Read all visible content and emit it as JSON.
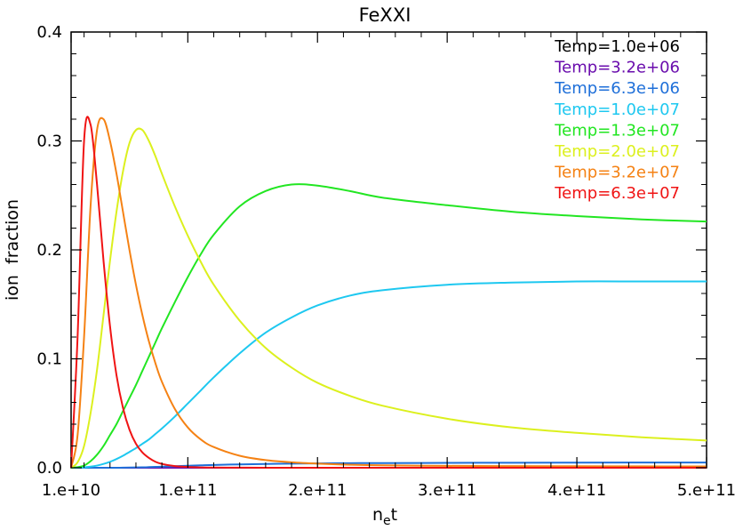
{
  "chart_data": {
    "type": "line",
    "title": "FeXXI",
    "xlabel": "n",
    "xlabel_subscript": "e",
    "xlabel_suffix": "t",
    "ylabel": "ion  fraction",
    "xlim": [
      10000000000.0,
      500000000000.0
    ],
    "ylim": [
      0,
      0.4
    ],
    "x_ticks": [
      {
        "value": 10000000000.0,
        "label": "1.e+10"
      },
      {
        "value": 100000000000.0,
        "label": "1.e+11"
      },
      {
        "value": 200000000000.0,
        "label": "2.e+11"
      },
      {
        "value": 300000000000.0,
        "label": "3.e+11"
      },
      {
        "value": 400000000000.0,
        "label": "4.e+11"
      },
      {
        "value": 500000000000.0,
        "label": "5.e+11"
      }
    ],
    "y_ticks": [
      {
        "value": 0.0,
        "label": "0.0"
      },
      {
        "value": 0.1,
        "label": "0.1"
      },
      {
        "value": 0.2,
        "label": "0.2"
      },
      {
        "value": 0.3,
        "label": "0.3"
      },
      {
        "value": 0.4,
        "label": "0.4"
      }
    ],
    "legend_position": "top-right",
    "grid": false,
    "x": [
      10000000000.0,
      15000000000.0,
      20000000000.0,
      25000000000.0,
      30000000000.0,
      35000000000.0,
      40000000000.0,
      45000000000.0,
      50000000000.0,
      55000000000.0,
      60000000000.0,
      65000000000.0,
      70000000000.0,
      75000000000.0,
      80000000000.0,
      90000000000.0,
      100000000000.0,
      110000000000.0,
      120000000000.0,
      140000000000.0,
      160000000000.0,
      180000000000.0,
      200000000000.0,
      225000000000.0,
      250000000000.0,
      300000000000.0,
      350000000000.0,
      400000000000.0,
      450000000000.0,
      500000000000.0
    ],
    "series": [
      {
        "name": "Temp=1.0e+06",
        "color": "#000000",
        "values": [
          0,
          0,
          0,
          0,
          0,
          0,
          0,
          0,
          0,
          0,
          0,
          0,
          0,
          0,
          0,
          0,
          0,
          0,
          0,
          0,
          0,
          0,
          0,
          0,
          0,
          0,
          0,
          0,
          0,
          0
        ]
      },
      {
        "name": "Temp=3.2e+06",
        "color": "#6a0dad",
        "values": [
          0,
          0,
          0,
          0,
          0,
          0,
          0,
          0,
          0,
          0,
          0,
          0,
          0,
          0,
          0,
          0,
          0,
          0,
          0,
          0,
          0,
          0,
          0,
          0,
          0,
          0,
          0,
          0,
          0,
          0
        ]
      },
      {
        "name": "Temp=6.3e+06",
        "color": "#1e6fd9",
        "values": [
          0,
          0,
          0,
          0,
          0,
          0,
          0,
          0,
          0.0001,
          0.0002,
          0.0003,
          0.0004,
          0.0006,
          0.0008,
          0.001,
          0.0014,
          0.0018,
          0.0022,
          0.0026,
          0.0031,
          0.0035,
          0.0038,
          0.004,
          0.0042,
          0.0043,
          0.0045,
          0.0046,
          0.0047,
          0.0048,
          0.0048
        ]
      },
      {
        "name": "Temp=1.0e+07",
        "color": "#1ec8f0",
        "values": [
          0,
          0.0001,
          0.0004,
          0.001,
          0.002,
          0.0035,
          0.0055,
          0.008,
          0.011,
          0.0145,
          0.018,
          0.022,
          0.026,
          0.031,
          0.036,
          0.047,
          0.059,
          0.071,
          0.083,
          0.105,
          0.124,
          0.138,
          0.149,
          0.158,
          0.163,
          0.168,
          0.17,
          0.171,
          0.171,
          0.171
        ]
      },
      {
        "name": "Temp=1.3e+07",
        "color": "#22e622",
        "values": [
          0,
          0.0005,
          0.002,
          0.006,
          0.012,
          0.02,
          0.03,
          0.04,
          0.052,
          0.064,
          0.076,
          0.089,
          0.102,
          0.115,
          0.128,
          0.152,
          0.175,
          0.196,
          0.214,
          0.24,
          0.254,
          0.26,
          0.259,
          0.254,
          0.248,
          0.241,
          0.235,
          0.231,
          0.228,
          0.226
        ]
      },
      {
        "name": "Temp=2.0e+07",
        "color": "#dcf01e",
        "values": [
          0,
          0.005,
          0.02,
          0.05,
          0.09,
          0.14,
          0.19,
          0.235,
          0.272,
          0.298,
          0.31,
          0.31,
          0.3,
          0.286,
          0.27,
          0.24,
          0.213,
          0.189,
          0.168,
          0.135,
          0.11,
          0.092,
          0.078,
          0.066,
          0.057,
          0.045,
          0.037,
          0.032,
          0.028,
          0.025
        ]
      },
      {
        "name": "Temp=3.2e+07",
        "color": "#f58214",
        "values": [
          0,
          0.03,
          0.12,
          0.24,
          0.31,
          0.32,
          0.3,
          0.27,
          0.235,
          0.2,
          0.168,
          0.14,
          0.116,
          0.096,
          0.079,
          0.054,
          0.037,
          0.026,
          0.019,
          0.011,
          0.007,
          0.005,
          0.0038,
          0.0028,
          0.0022,
          0.0017,
          0.0015,
          0.0014,
          0.0013,
          0.0012
        ]
      },
      {
        "name": "Temp=6.3e+07",
        "color": "#f01414",
        "values": [
          0,
          0.12,
          0.3,
          0.315,
          0.26,
          0.19,
          0.13,
          0.085,
          0.055,
          0.035,
          0.022,
          0.014,
          0.009,
          0.0055,
          0.0035,
          0.0015,
          0.0007,
          0.0003,
          0.0002,
          0.0001,
          0,
          0,
          0,
          0,
          0,
          0,
          0,
          0,
          0,
          0
        ]
      }
    ]
  }
}
